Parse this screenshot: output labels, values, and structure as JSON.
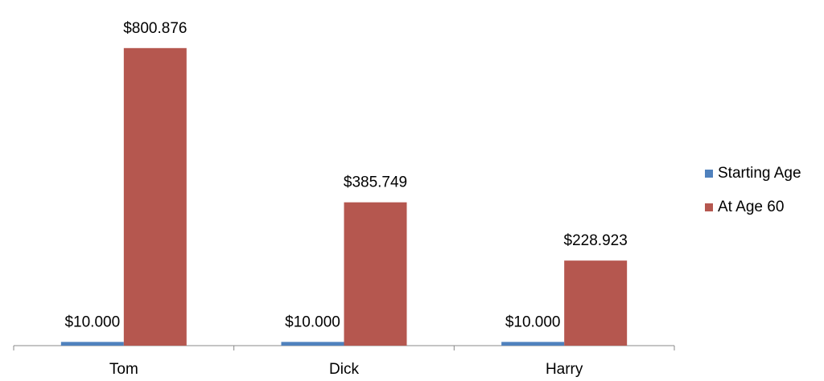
{
  "chart_data": {
    "type": "bar",
    "categories": [
      "Tom",
      "Dick",
      "Harry"
    ],
    "series": [
      {
        "name": "Starting Age",
        "color": "#4f81bd",
        "values": [
          10000,
          10000,
          10000
        ],
        "value_labels": [
          "$10.000",
          "$10.000",
          "$10.000"
        ]
      },
      {
        "name": "At Age 60",
        "color": "#b5574f",
        "values": [
          800876,
          385749,
          228923
        ],
        "value_labels": [
          "$800.876",
          "$385.749",
          "$228.923"
        ]
      }
    ],
    "ylim": [
      0,
      900000
    ],
    "legend": "right"
  }
}
